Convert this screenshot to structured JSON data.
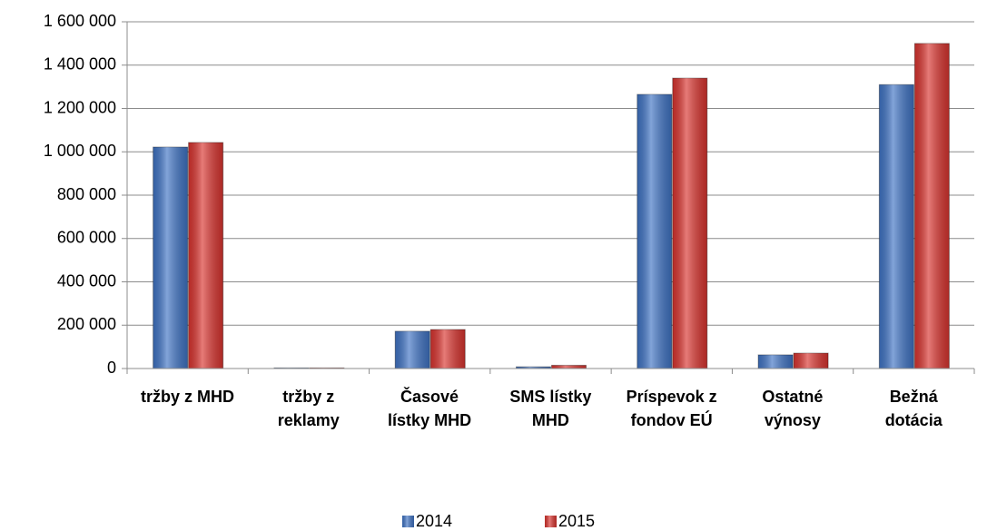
{
  "chart_data": {
    "type": "bar",
    "categories": [
      "tržby z MHD",
      "tržby z\nreklamy",
      "Časové\nlístky MHD",
      "SMS lístky\nMHD",
      "Príspevok z\nfondov EÚ",
      "Ostatné\nvýnosy",
      "Bežná\ndotácia"
    ],
    "series": [
      {
        "name": "2014",
        "color": "#3f73c4",
        "values": [
          1022000,
          3000,
          172000,
          8000,
          1265000,
          63000,
          1310000
        ]
      },
      {
        "name": "2015",
        "color": "#d9342f",
        "values": [
          1043000,
          3000,
          180000,
          15000,
          1340000,
          71000,
          1500000
        ]
      }
    ],
    "ylim": [
      0,
      1600000
    ],
    "yticks": [
      0,
      {
        "value": 200000,
        "label": "200 000"
      },
      {
        "value": 400000,
        "label": "400 000"
      },
      {
        "value": 600000,
        "label": "600 000"
      },
      {
        "value": 800000,
        "label": "800 000"
      },
      {
        "value": 1000000,
        "label": "1 000 000"
      },
      {
        "value": 1200000,
        "label": "1 200 000"
      },
      {
        "value": 1400000,
        "label": "1 400 000"
      },
      {
        "value": 1600000,
        "label": "1 600 000"
      }
    ],
    "grid": true,
    "legend": "bottom"
  }
}
